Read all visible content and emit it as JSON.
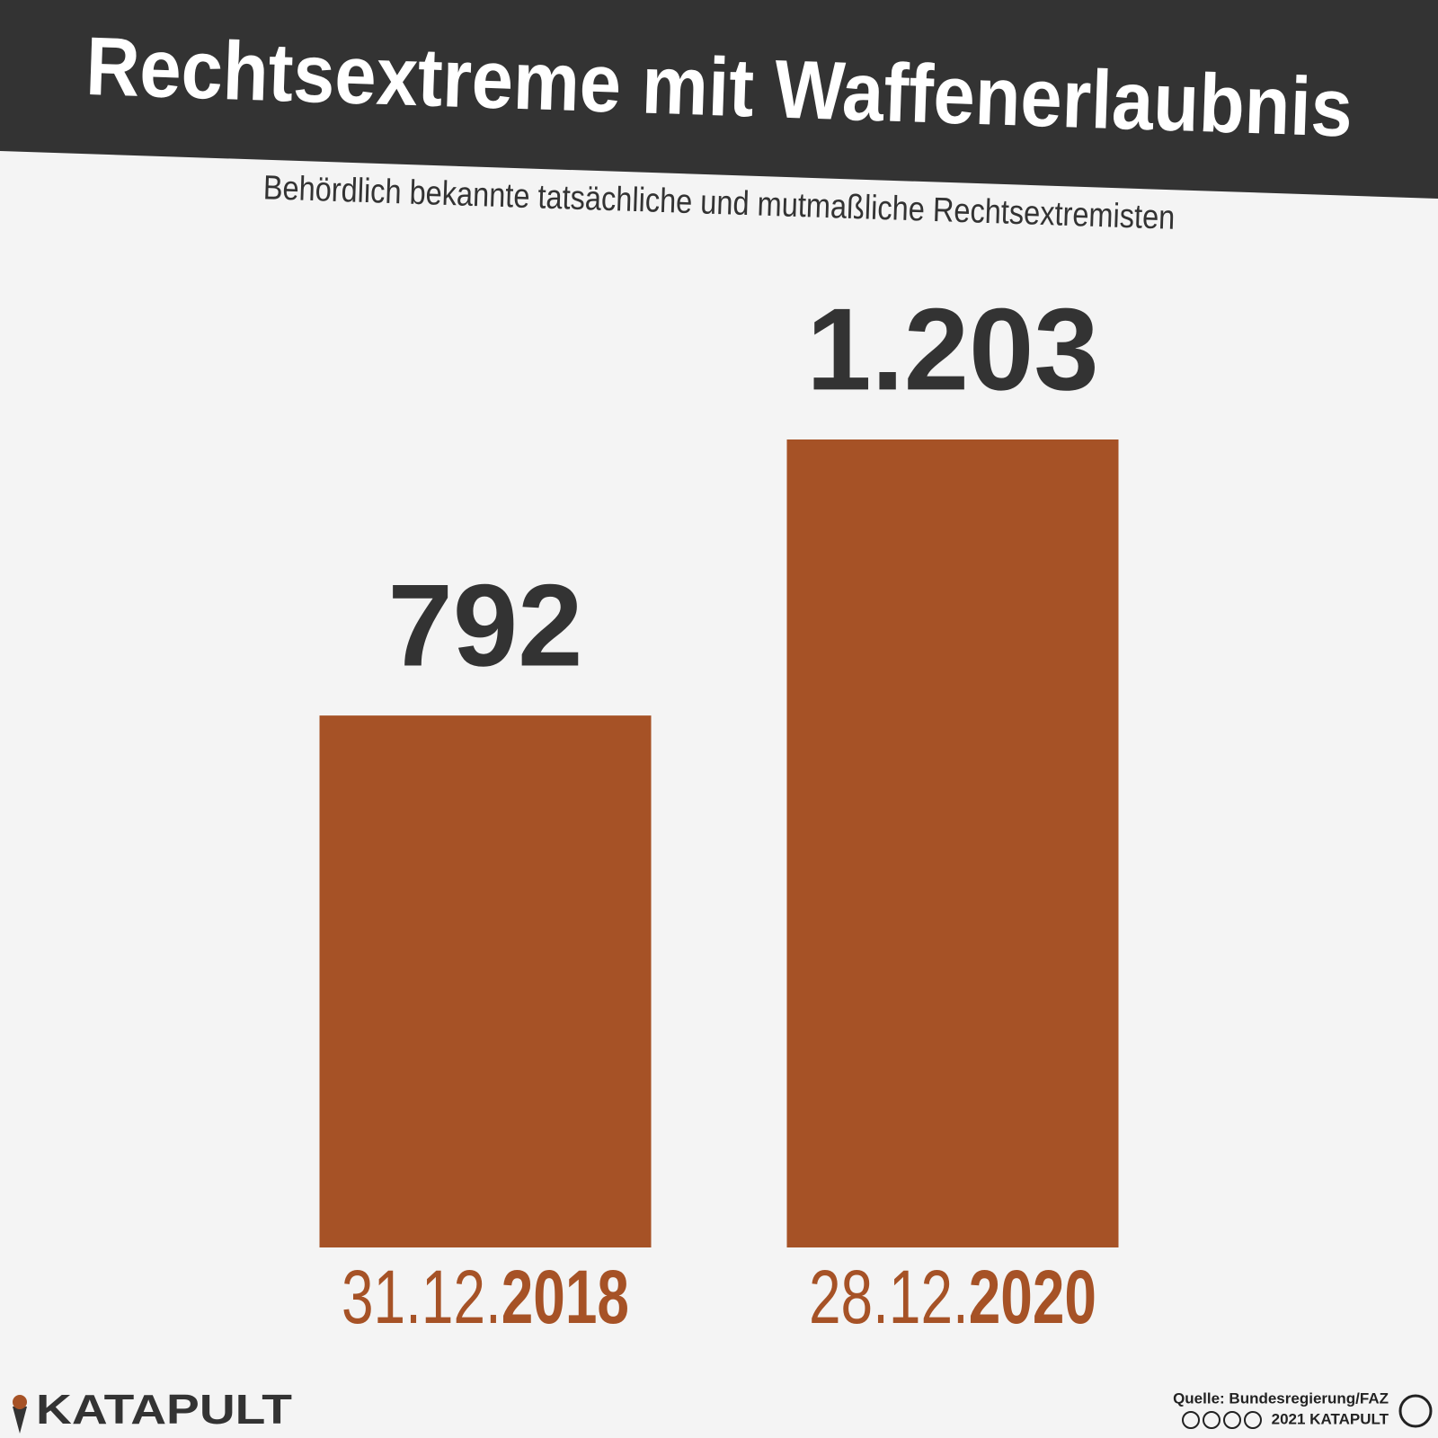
{
  "chart_data": {
    "type": "bar",
    "title": "Rechtsextreme mit Waffenerlaubnis",
    "subtitle": "Behördlich bekannte tatsächliche und mutmaßliche Rechtsextremisten",
    "categories": [
      "31.12.2018",
      "28.12.2020"
    ],
    "values": [
      792,
      1203
    ],
    "value_labels": [
      "792",
      "1.203"
    ],
    "color": "#a65226",
    "logo": "KATAPULT",
    "source": "Quelle: Bundesregierung/FAZ",
    "copyright": "2021 KATAPULT"
  }
}
